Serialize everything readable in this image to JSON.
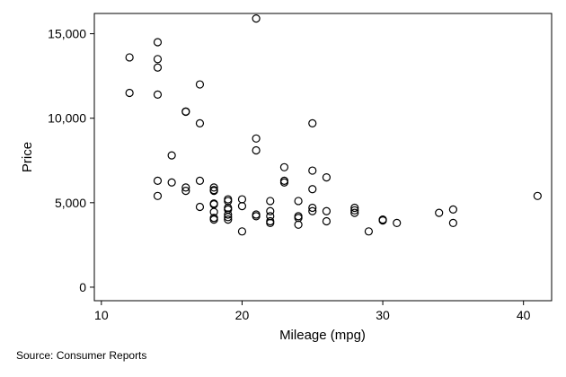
{
  "chart_data": {
    "type": "scatter",
    "title": "",
    "xlabel": "Mileage (mpg)",
    "ylabel": "Price",
    "xlim": [
      9.5,
      42
    ],
    "ylim": [
      -800,
      16200
    ],
    "x_ticks": [
      {
        "value": 10,
        "label": "10"
      },
      {
        "value": 20,
        "label": "20"
      },
      {
        "value": 30,
        "label": "30"
      },
      {
        "value": 40,
        "label": "40"
      }
    ],
    "y_ticks": [
      {
        "value": 0,
        "label": "0"
      },
      {
        "value": 5000,
        "label": "5,000"
      },
      {
        "value": 10000,
        "label": "10,000"
      },
      {
        "value": 15000,
        "label": "15,000"
      }
    ],
    "grid": false,
    "legend": false,
    "note": "Source: Consumer Reports",
    "marker_color": "#000000",
    "points": [
      {
        "x": 12,
        "y": 13600
      },
      {
        "x": 12,
        "y": 11500
      },
      {
        "x": 14,
        "y": 14500
      },
      {
        "x": 14,
        "y": 13500
      },
      {
        "x": 14,
        "y": 13000
      },
      {
        "x": 14,
        "y": 11400
      },
      {
        "x": 14,
        "y": 6300
      },
      {
        "x": 14,
        "y": 5400
      },
      {
        "x": 15,
        "y": 7800
      },
      {
        "x": 15,
        "y": 6200
      },
      {
        "x": 16,
        "y": 10400
      },
      {
        "x": 16,
        "y": 10380
      },
      {
        "x": 16,
        "y": 5900
      },
      {
        "x": 16,
        "y": 5700
      },
      {
        "x": 17,
        "y": 12000
      },
      {
        "x": 17,
        "y": 9700
      },
      {
        "x": 17,
        "y": 6300
      },
      {
        "x": 17,
        "y": 4750
      },
      {
        "x": 18,
        "y": 5900
      },
      {
        "x": 18,
        "y": 5750
      },
      {
        "x": 18,
        "y": 5700
      },
      {
        "x": 18,
        "y": 4950
      },
      {
        "x": 18,
        "y": 4900
      },
      {
        "x": 18,
        "y": 4450
      },
      {
        "x": 18,
        "y": 4100
      },
      {
        "x": 18,
        "y": 4000
      },
      {
        "x": 19,
        "y": 5200
      },
      {
        "x": 19,
        "y": 5100
      },
      {
        "x": 19,
        "y": 4700
      },
      {
        "x": 19,
        "y": 4600
      },
      {
        "x": 19,
        "y": 4300
      },
      {
        "x": 19,
        "y": 4150
      },
      {
        "x": 19,
        "y": 4000
      },
      {
        "x": 20,
        "y": 5200
      },
      {
        "x": 20,
        "y": 4800
      },
      {
        "x": 20,
        "y": 3300
      },
      {
        "x": 21,
        "y": 15900
      },
      {
        "x": 21,
        "y": 8800
      },
      {
        "x": 21,
        "y": 8100
      },
      {
        "x": 21,
        "y": 4300
      },
      {
        "x": 21,
        "y": 4200
      },
      {
        "x": 22,
        "y": 5100
      },
      {
        "x": 22,
        "y": 4500
      },
      {
        "x": 22,
        "y": 4200
      },
      {
        "x": 22,
        "y": 3900
      },
      {
        "x": 22,
        "y": 3800
      },
      {
        "x": 23,
        "y": 7100
      },
      {
        "x": 23,
        "y": 6300
      },
      {
        "x": 23,
        "y": 6200
      },
      {
        "x": 24,
        "y": 5100
      },
      {
        "x": 24,
        "y": 4200
      },
      {
        "x": 24,
        "y": 4100
      },
      {
        "x": 24,
        "y": 3700
      },
      {
        "x": 25,
        "y": 9700
      },
      {
        "x": 25,
        "y": 6900
      },
      {
        "x": 25,
        "y": 5800
      },
      {
        "x": 25,
        "y": 4700
      },
      {
        "x": 25,
        "y": 4500
      },
      {
        "x": 26,
        "y": 6500
      },
      {
        "x": 26,
        "y": 4500
      },
      {
        "x": 26,
        "y": 3900
      },
      {
        "x": 28,
        "y": 4700
      },
      {
        "x": 28,
        "y": 4550
      },
      {
        "x": 28,
        "y": 4400
      },
      {
        "x": 29,
        "y": 3300
      },
      {
        "x": 30,
        "y": 4000
      },
      {
        "x": 30,
        "y": 3950
      },
      {
        "x": 31,
        "y": 3800
      },
      {
        "x": 34,
        "y": 4400
      },
      {
        "x": 35,
        "y": 4600
      },
      {
        "x": 35,
        "y": 3800
      },
      {
        "x": 41,
        "y": 5400
      }
    ]
  }
}
